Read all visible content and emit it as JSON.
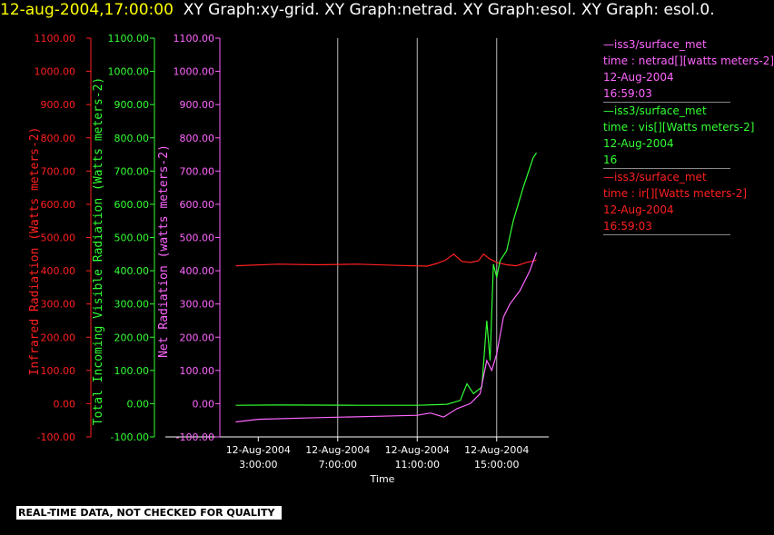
{
  "header": {
    "timestamp": "12-aug-2004,17:00:00",
    "graphs_line": "XY Graph:xy-grid.  XY Graph:netrad.  XY Graph:esol.  XY Graph: esol.0."
  },
  "legend": [
    {
      "source": "—iss3/surface_met",
      "field": "time : netrad[][watts meters-2]",
      "date": "12-Aug-2004",
      "time": "16:59:03",
      "color": "#ff66ff"
    },
    {
      "source": "—iss3/surface_met",
      "field": "time : vis[][Watts meters-2]",
      "date": "12-Aug-2004",
      "time": "16",
      "color": "#33ff33"
    },
    {
      "source": "—iss3/surface_met",
      "field": "time : ir[][Watts meters-2]",
      "date": "12-Aug-2004",
      "time": "16:59:03",
      "color": "#ff2020"
    }
  ],
  "footer": {
    "quality_note": "REAL-TIME DATA, NOT CHECKED FOR QUALITY"
  },
  "chart_data": {
    "type": "line",
    "xlabel": "Time",
    "xlim": [
      "12-Aug-2004 01:04",
      "12-Aug-2004 17:37"
    ],
    "x_ticks": [
      {
        "date": "12-Aug-2004",
        "time": "3:00:00"
      },
      {
        "date": "12-Aug-2004",
        "time": "7:00:00"
      },
      {
        "date": "12-Aug-2004",
        "time": "11:00:00"
      },
      {
        "date": "12-Aug-2004",
        "time": "15:00:00"
      }
    ],
    "grid": "vertical lines at x ticks",
    "y_axes": [
      {
        "label": "Infrared Radiation (Watts meters-2)",
        "ylim": [
          -100,
          1100
        ],
        "color": "#ff2020",
        "ticks": [
          "-100.00",
          "0.00",
          "100.00",
          "200.00",
          "300.00",
          "400.00",
          "500.00",
          "600.00",
          "700.00",
          "800.00",
          "900.00",
          "1000.00",
          "1100.00"
        ]
      },
      {
        "label": "Total Incoming Visible Radiation (Watts meters-2)",
        "ylim": [
          -100,
          1100
        ],
        "color": "#33ff33",
        "ticks": [
          "-100.00",
          "0.00",
          "100.00",
          "200.00",
          "300.00",
          "400.00",
          "500.00",
          "600.00",
          "700.00",
          "800.00",
          "900.00",
          "1000.00",
          "1100.00"
        ]
      },
      {
        "label": "Net Radiation (watts meters-2)",
        "ylim": [
          -100,
          1100
        ],
        "color": "#ff66ff",
        "ticks": [
          "-100.00",
          "0.00",
          "100.00",
          "200.00",
          "300.00",
          "400.00",
          "500.00",
          "600.00",
          "700.00",
          "800.00",
          "900.00",
          "1000.00",
          "1100.00"
        ]
      }
    ],
    "series": [
      {
        "color": "#ff2020",
        "points": [
          [
            "12-Aug-2004 01:52",
            415
          ],
          [
            "12-Aug-2004 04:00",
            420
          ],
          [
            "12-Aug-2004 06:00",
            418
          ],
          [
            "12-Aug-2004 08:00",
            420
          ],
          [
            "12-Aug-2004 10:00",
            416
          ],
          [
            "12-Aug-2004 11:30",
            414
          ],
          [
            "12-Aug-2004 12:00",
            422
          ],
          [
            "12-Aug-2004 12:25",
            432
          ],
          [
            "12-Aug-2004 12:50",
            450
          ],
          [
            "12-Aug-2004 13:15",
            428
          ],
          [
            "12-Aug-2004 13:40",
            425
          ],
          [
            "12-Aug-2004 14:05",
            430
          ],
          [
            "12-Aug-2004 14:20",
            450
          ],
          [
            "12-Aug-2004 14:40",
            435
          ],
          [
            "12-Aug-2004 15:00",
            425
          ],
          [
            "12-Aug-2004 15:30",
            418
          ],
          [
            "12-Aug-2004 16:00",
            415
          ],
          [
            "12-Aug-2004 16:30",
            425
          ],
          [
            "12-Aug-2004 17:00",
            432
          ]
        ]
      },
      {
        "color": "#33ff33",
        "points": [
          [
            "12-Aug-2004 01:52",
            -5
          ],
          [
            "12-Aug-2004 04:00",
            -4
          ],
          [
            "12-Aug-2004 08:00",
            -5
          ],
          [
            "12-Aug-2004 11:00",
            -5
          ],
          [
            "12-Aug-2004 12:30",
            -2
          ],
          [
            "12-Aug-2004 13:10",
            10
          ],
          [
            "12-Aug-2004 13:30",
            60
          ],
          [
            "12-Aug-2004 13:50",
            30
          ],
          [
            "12-Aug-2004 14:15",
            50
          ],
          [
            "12-Aug-2004 14:30",
            250
          ],
          [
            "12-Aug-2004 14:40",
            130
          ],
          [
            "12-Aug-2004 14:50",
            420
          ],
          [
            "12-Aug-2004 15:00",
            380
          ],
          [
            "12-Aug-2004 15:10",
            430
          ],
          [
            "12-Aug-2004 15:30",
            460
          ],
          [
            "12-Aug-2004 15:50",
            550
          ],
          [
            "12-Aug-2004 16:20",
            650
          ],
          [
            "12-Aug-2004 16:50",
            740
          ],
          [
            "12-Aug-2004 17:00",
            755
          ]
        ]
      },
      {
        "color": "#ff66ff",
        "points": [
          [
            "12-Aug-2004 01:52",
            -55
          ],
          [
            "12-Aug-2004 03:00",
            -47
          ],
          [
            "12-Aug-2004 06:00",
            -42
          ],
          [
            "12-Aug-2004 09:00",
            -38
          ],
          [
            "12-Aug-2004 11:00",
            -35
          ],
          [
            "12-Aug-2004 11:40",
            -28
          ],
          [
            "12-Aug-2004 12:20",
            -40
          ],
          [
            "12-Aug-2004 13:00",
            -15
          ],
          [
            "12-Aug-2004 13:40",
            0
          ],
          [
            "12-Aug-2004 14:10",
            30
          ],
          [
            "12-Aug-2004 14:30",
            130
          ],
          [
            "12-Aug-2004 14:45",
            100
          ],
          [
            "12-Aug-2004 15:00",
            150
          ],
          [
            "12-Aug-2004 15:20",
            260
          ],
          [
            "12-Aug-2004 15:40",
            300
          ],
          [
            "12-Aug-2004 16:10",
            340
          ],
          [
            "12-Aug-2004 16:40",
            400
          ],
          [
            "12-Aug-2004 17:00",
            455
          ]
        ]
      }
    ]
  }
}
